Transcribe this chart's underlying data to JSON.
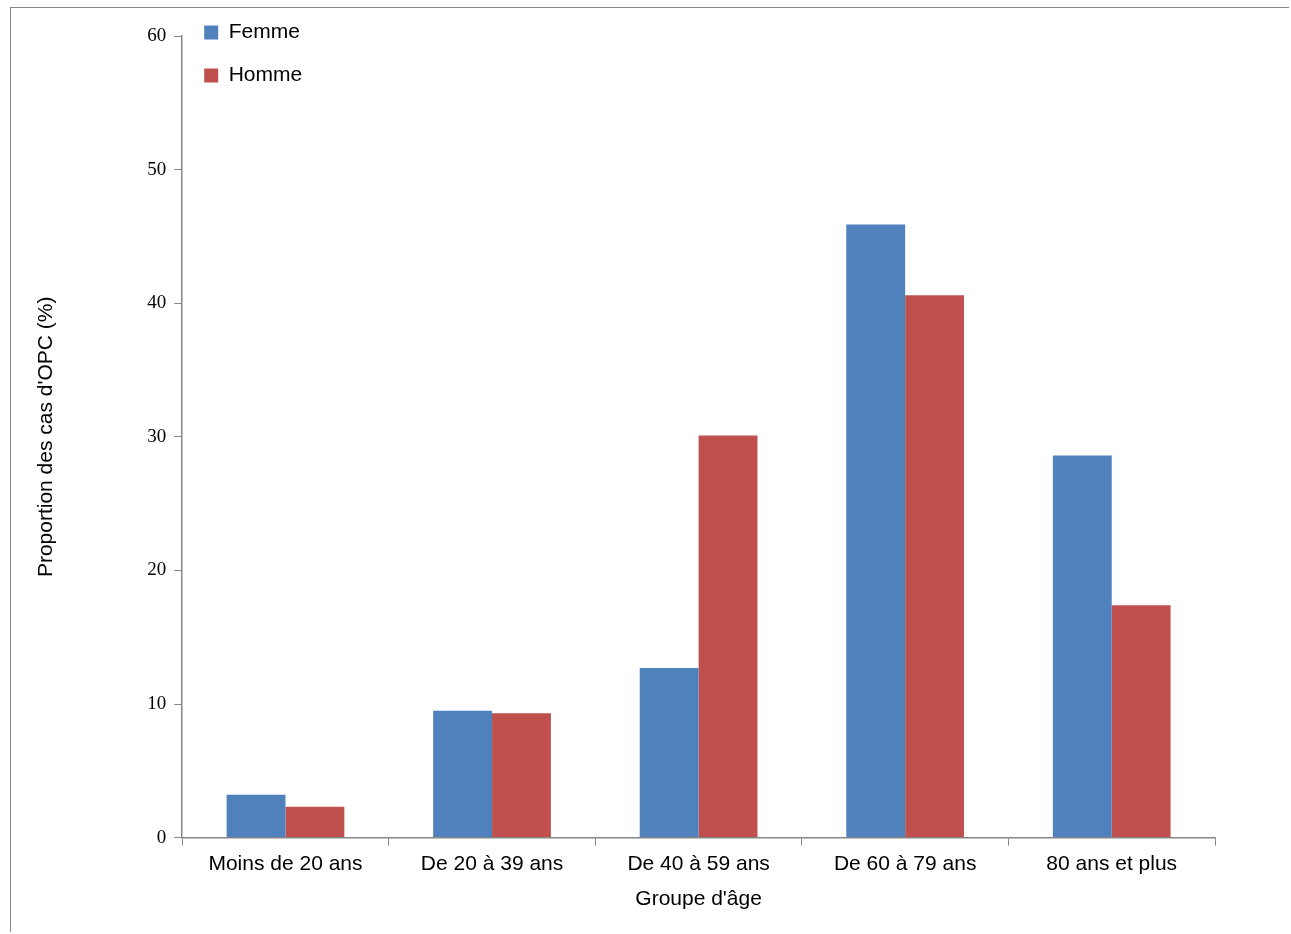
{
  "chart_data": {
    "type": "bar",
    "xlabel": "Groupe d'âge",
    "ylabel": "Proportion des cas d'OPC (%)",
    "categories": [
      "Moins de 20 ans",
      "De 20 à 39 ans",
      "De 40 à 59 ans",
      "De 60 à 79 ans",
      "80 ans et plus"
    ],
    "series": [
      {
        "name": "Femme",
        "color": "#4f81bd",
        "values": [
          3.2,
          9.5,
          12.7,
          45.9,
          28.6
        ]
      },
      {
        "name": "Homme",
        "color": "#c0504d",
        "values": [
          2.3,
          9.3,
          30.1,
          40.6,
          17.4
        ]
      }
    ],
    "ylim": [
      0,
      60
    ],
    "yticks": [
      0,
      10,
      20,
      30,
      40,
      50,
      60
    ],
    "grid": false,
    "legend": "top left"
  }
}
